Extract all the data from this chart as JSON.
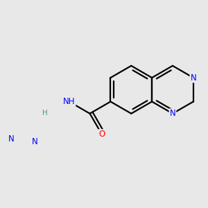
{
  "background_color": "#e8e8e8",
  "bond_color": "#000000",
  "N_color": "#0000ff",
  "O_color": "#ff0000",
  "H_color": "#4a9a6a",
  "line_width": 1.6,
  "figsize": [
    3.0,
    3.0
  ],
  "dpi": 100,
  "xlim": [
    -2.2,
    3.8
  ],
  "ylim": [
    -2.8,
    2.2
  ]
}
